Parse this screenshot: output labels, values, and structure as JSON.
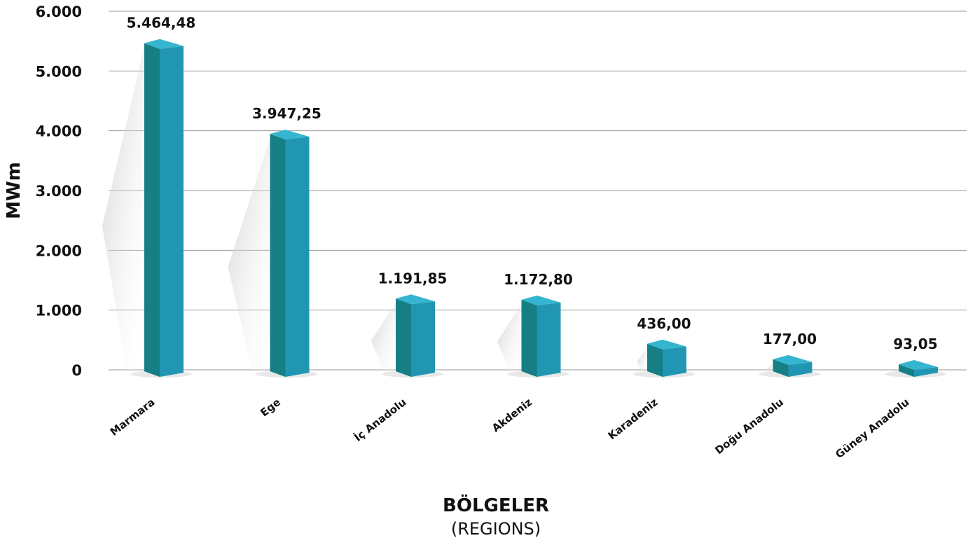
{
  "chart_data": {
    "type": "bar",
    "ylabel": "MWm",
    "xlabel": "BÖLGELER",
    "xlabel_sub": "(REGIONS)",
    "ylim": [
      0,
      6000
    ],
    "yticks": [
      0,
      1000,
      2000,
      3000,
      4000,
      5000,
      6000
    ],
    "ytick_labels": [
      "0",
      "1.000",
      "2.000",
      "3.000",
      "4.000",
      "5.000",
      "6.000"
    ],
    "grid": true,
    "categories": [
      "Marmara",
      "Ege",
      "İç Anadolu",
      "Akdeniz",
      "Karadeniz",
      "Doğu Anadolu",
      "Güney Anadolu"
    ],
    "values": [
      5464.48,
      3947.25,
      1191.85,
      1172.8,
      436.0,
      177.0,
      93.05
    ],
    "value_labels": [
      "5.464,48",
      "3.947,25",
      "1.191,85",
      "1.172,80",
      "436,00",
      "177,00",
      "93,05"
    ],
    "colors": {
      "bar_front": "#2196b3",
      "bar_side": "#167f86",
      "bar_top": "#35b5cf"
    }
  }
}
